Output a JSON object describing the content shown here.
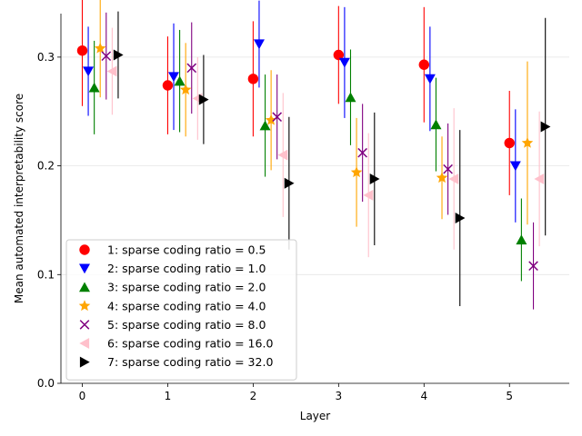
{
  "chart_data": {
    "type": "scatter",
    "title": "",
    "xlabel": "Layer",
    "ylabel": "Mean automated interpretability score",
    "xlim": [
      -0.25,
      5.7
    ],
    "ylim": [
      0.0,
      0.34
    ],
    "x_ticks": [
      0,
      1,
      2,
      3,
      4,
      5
    ],
    "y_ticks": [
      0.0,
      0.1,
      0.2,
      0.3
    ],
    "y_tick_labels": [
      "0.0",
      "0.1",
      "0.2",
      "0.3"
    ],
    "grid": "horizontal",
    "legend_position": "lower-left",
    "group_offset_step": 0.07,
    "series": [
      {
        "name": "1: sparse coding ratio = 0.5",
        "color": "#ff0000",
        "marker": "circle",
        "y": [
          0.306,
          0.274,
          0.28,
          0.302,
          0.293,
          0.221
        ],
        "yerr": [
          0.051,
          0.045,
          0.053,
          0.045,
          0.053,
          0.048
        ]
      },
      {
        "name": "2: sparse coding ratio = 1.0",
        "color": "#0000ff",
        "marker": "triangle-down",
        "y": [
          0.287,
          0.282,
          0.312,
          0.295,
          0.28,
          0.2
        ],
        "yerr": [
          0.041,
          0.049,
          0.04,
          0.051,
          0.048,
          0.052
        ]
      },
      {
        "name": "3: sparse coding ratio = 2.0",
        "color": "#008000",
        "marker": "triangle-up",
        "y": [
          0.272,
          0.278,
          0.237,
          0.263,
          0.238,
          0.132
        ],
        "yerr": [
          0.043,
          0.047,
          0.047,
          0.044,
          0.043,
          0.038
        ]
      },
      {
        "name": "4: sparse coding ratio = 4.0",
        "color": "#ffa500",
        "marker": "star",
        "y": [
          0.308,
          0.27,
          0.242,
          0.194,
          0.189,
          0.221
        ],
        "yerr": [
          0.045,
          0.043,
          0.046,
          0.05,
          0.038,
          0.075
        ]
      },
      {
        "name": "5: sparse coding ratio = 8.0",
        "color": "#800080",
        "marker": "x",
        "y": [
          0.301,
          0.29,
          0.245,
          0.212,
          0.197,
          0.108
        ],
        "yerr": [
          0.04,
          0.042,
          0.039,
          0.045,
          0.042,
          0.04
        ]
      },
      {
        "name": "6: sparse coding ratio = 16.0",
        "color": "#ffc0cb",
        "marker": "triangle-left",
        "y": [
          0.287,
          0.262,
          0.21,
          0.173,
          0.188,
          0.188
        ],
        "yerr": [
          0.04,
          0.038,
          0.057,
          0.057,
          0.065,
          0.062
        ]
      },
      {
        "name": "7: sparse coding ratio = 32.0",
        "color": "#000000",
        "marker": "triangle-right",
        "y": [
          0.302,
          0.261,
          0.184,
          0.188,
          0.152,
          0.236
        ],
        "yerr": [
          0.04,
          0.041,
          0.061,
          0.061,
          0.081,
          0.1
        ]
      }
    ]
  }
}
